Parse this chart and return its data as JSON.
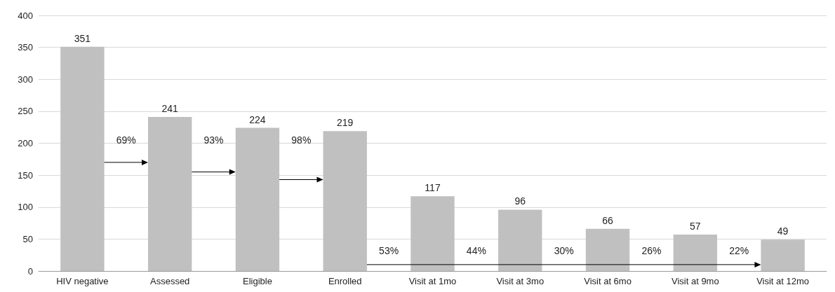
{
  "chart_data": {
    "type": "bar",
    "categories": [
      "HIV negative",
      "Assessed",
      "Eligible",
      "Enrolled",
      "Visit at 1mo",
      "Visit at 3mo",
      "Visit at 6mo",
      "Visit at 9mo",
      "Visit at 12mo"
    ],
    "values": [
      351,
      241,
      224,
      219,
      117,
      96,
      66,
      57,
      49
    ],
    "color": "#c0c0c0",
    "data_labels": true,
    "ylim": [
      0,
      400
    ],
    "yticks": [
      0,
      50,
      100,
      150,
      200,
      250,
      300,
      350,
      400
    ],
    "grid": "y",
    "annotations": [
      "69%",
      "93%",
      "98%",
      "53%",
      "44%",
      "30%",
      "26%",
      "22%"
    ]
  }
}
